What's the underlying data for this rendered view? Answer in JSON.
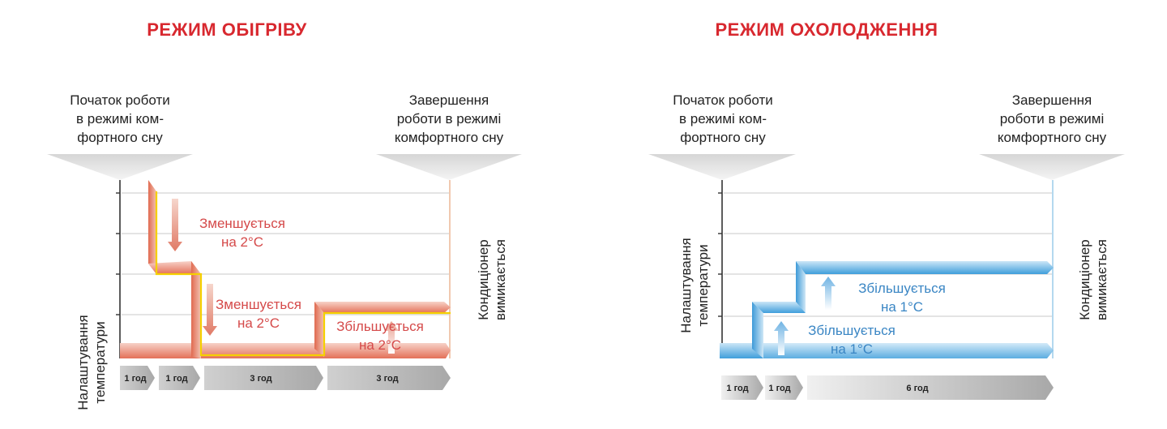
{
  "heating": {
    "title": "РЕЖИМ ОБІГРІВУ",
    "title_color": "#d8282f",
    "start_caption": "Початок роботи\nв режимі ком-\nфортного сну",
    "end_caption": "Завершення\nроботи в режимі\nкомфортного сну",
    "y_label": "Налаштування\nтемператури",
    "right_label": "Кондиціонер\nвимикається",
    "notes": [
      "Зменшується\nна 2°C",
      "Зменшується\nна 2°C",
      "Збільшується\nна 2°C"
    ],
    "note_color": "#d54a4a",
    "band_color": "#e07060",
    "outline_color": "#f5d000",
    "time_segments": [
      "1 год",
      "1 год",
      "3 год",
      "3 год"
    ]
  },
  "cooling": {
    "title": "РЕЖИМ ОХОЛОДЖЕННЯ",
    "title_color": "#d8282f",
    "start_caption": "Початок роботи\nв режимі ком-\nфортного сну",
    "end_caption": "Завершення\nроботи в режимі\nкомфортного сну",
    "y_label": "Налаштування\nтемператури",
    "right_label": "Кондиціонер\nвимикається",
    "notes": [
      "Збільшується\nна 1°C",
      "Збільшується\nна 1°C"
    ],
    "note_color": "#3a86c4",
    "band_color": "#3d9ad8",
    "time_segments": [
      "1 год",
      "1 год",
      "6 год"
    ]
  }
}
